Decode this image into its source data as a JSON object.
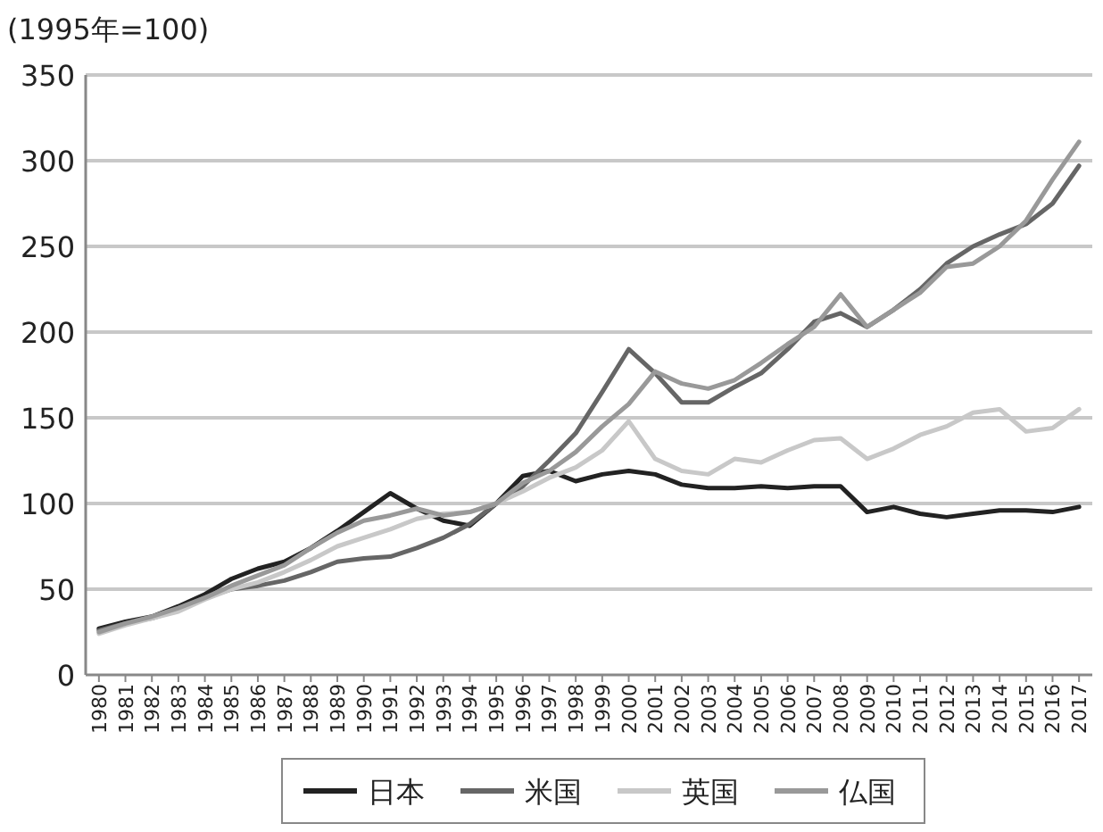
{
  "chart_data": {
    "type": "line",
    "ylabel": "(1995年=100)",
    "categories": [
      "1980",
      "1981",
      "1982",
      "1983",
      "1984",
      "1985",
      "1986",
      "1987",
      "1988",
      "1989",
      "1990",
      "1991",
      "1992",
      "1993",
      "1994",
      "1995",
      "1996",
      "1997",
      "1998",
      "1999",
      "2000",
      "2001",
      "2002",
      "2003",
      "2004",
      "2005",
      "2006",
      "2007",
      "2008",
      "2009",
      "2010",
      "2011",
      "2012",
      "2013",
      "2014",
      "2015",
      "2016",
      "2017"
    ],
    "ylim": [
      0,
      350
    ],
    "yticks": [
      0,
      50,
      100,
      150,
      200,
      250,
      300,
      350
    ],
    "grid": "y",
    "legend": "bottom",
    "marker": "none",
    "line_style": "solid",
    "series": [
      {
        "name": "日本",
        "color": "#222222",
        "values": [
          27,
          31,
          34,
          40,
          47,
          56,
          62,
          66,
          74,
          84,
          95,
          106,
          97,
          90,
          87,
          100,
          116,
          119,
          113,
          117,
          119,
          117,
          111,
          109,
          109,
          110,
          109,
          110,
          110,
          95,
          98,
          94,
          92,
          94,
          96,
          96,
          95,
          98
        ]
      },
      {
        "name": "米国",
        "color": "#666666",
        "values": [
          26,
          30,
          33,
          38,
          45,
          50,
          52,
          55,
          60,
          66,
          68,
          69,
          74,
          80,
          88,
          100,
          110,
          125,
          141,
          165,
          190,
          176,
          159,
          159,
          168,
          176,
          190,
          206,
          211,
          203,
          213,
          225,
          240,
          250,
          257,
          263,
          275,
          297
        ]
      },
      {
        "name": "英国",
        "color": "#c8c8c8",
        "values": [
          24,
          29,
          33,
          37,
          44,
          50,
          54,
          60,
          67,
          75,
          80,
          85,
          91,
          94,
          95,
          100,
          107,
          115,
          121,
          131,
          148,
          126,
          119,
          117,
          126,
          124,
          131,
          137,
          138,
          126,
          132,
          140,
          145,
          153,
          155,
          142,
          144,
          155
        ]
      },
      {
        "name": "仏国",
        "color": "#999999",
        "values": [
          25,
          30,
          34,
          39,
          45,
          52,
          58,
          64,
          74,
          83,
          90,
          93,
          97,
          93,
          95,
          100,
          112,
          119,
          130,
          145,
          158,
          177,
          170,
          167,
          172,
          182,
          193,
          203,
          222,
          203,
          213,
          223,
          238,
          240,
          250,
          265,
          289,
          311
        ]
      }
    ]
  }
}
